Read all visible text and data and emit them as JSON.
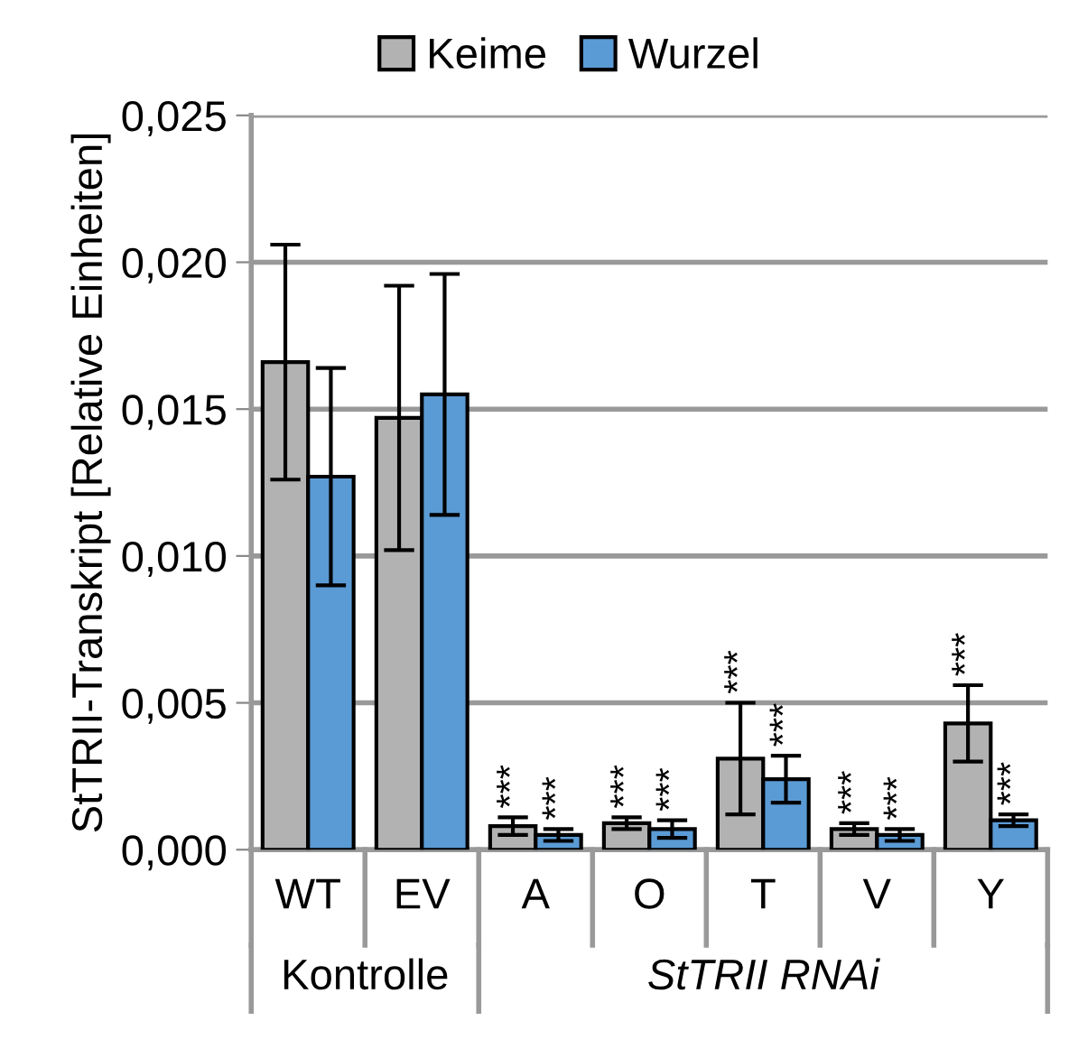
{
  "chart_data": {
    "type": "bar",
    "ylabel": "StTRII-Transkript [Relative Einheiten]",
    "categories": [
      "WT",
      "EV",
      "A",
      "O",
      "T",
      "V",
      "Y"
    ],
    "series": [
      {
        "name": "Keime",
        "color": "#b2b2b2",
        "values": [
          0.0166,
          0.0147,
          0.0008,
          0.0009,
          0.0031,
          0.0007,
          0.0043
        ],
        "errors": [
          0.004,
          0.0045,
          0.0003,
          0.0002,
          0.0019,
          0.0002,
          0.0013
        ],
        "value_labels": [
          null,
          null,
          "***",
          "***",
          "***",
          "***",
          "***"
        ]
      },
      {
        "name": "Wurzel",
        "color": "#5b9bd5",
        "values": [
          0.0127,
          0.0155,
          0.0005,
          0.0007,
          0.0024,
          0.0005,
          0.001
        ],
        "errors": [
          0.0037,
          0.0041,
          0.0002,
          0.0003,
          0.0008,
          0.0002,
          0.0002
        ],
        "value_labels": [
          null,
          null,
          "***",
          "***",
          "***",
          "***",
          "***"
        ]
      }
    ],
    "ylim": [
      0,
      0.025
    ],
    "yticks": [
      {
        "value": 0,
        "label": "0,000"
      },
      {
        "value": 0.005,
        "label": "0,005"
      },
      {
        "value": 0.01,
        "label": "0,010"
      },
      {
        "value": 0.015,
        "label": "0,015"
      },
      {
        "value": 0.02,
        "label": "0,020"
      },
      {
        "value": 0.025,
        "label": "0,025"
      }
    ],
    "grid": "y",
    "legend": "top",
    "annotations": [
      "Kontrolle",
      "StTRII RNAi"
    ]
  }
}
